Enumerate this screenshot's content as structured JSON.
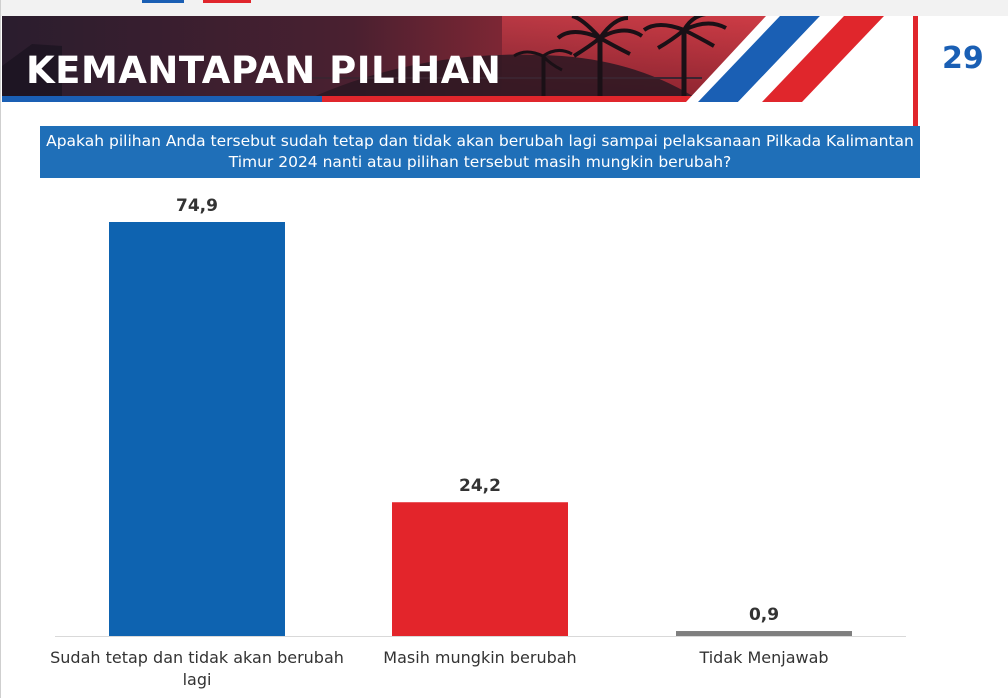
{
  "header": {
    "title": "KEMANTAPAN PILIHAN",
    "page_number": "29"
  },
  "question": "Apakah pilihan Anda tersebut sudah tetap dan tidak akan berubah lagi sampai pelaksanaan Pilkada Kalimantan Timur 2024 nanti atau pilihan tersebut masih mungkin berubah?",
  "chart_data": {
    "type": "bar",
    "categories": [
      "Sudah tetap dan tidak akan berubah lagi",
      "Masih mungkin berubah",
      "Tidak Menjawab"
    ],
    "values": [
      74.9,
      24.2,
      0.9
    ],
    "value_labels": [
      "74,9",
      "24,2",
      "0,9"
    ],
    "colors": [
      "#0e63b0",
      "#e3252b",
      "#7f7f7f"
    ],
    "ylim": [
      0,
      100
    ],
    "grid": false,
    "legend": "none"
  },
  "colors": {
    "brand_blue": "#1a5fb4",
    "brand_red": "#e0262c",
    "question_bg": "#1f6fb8"
  }
}
